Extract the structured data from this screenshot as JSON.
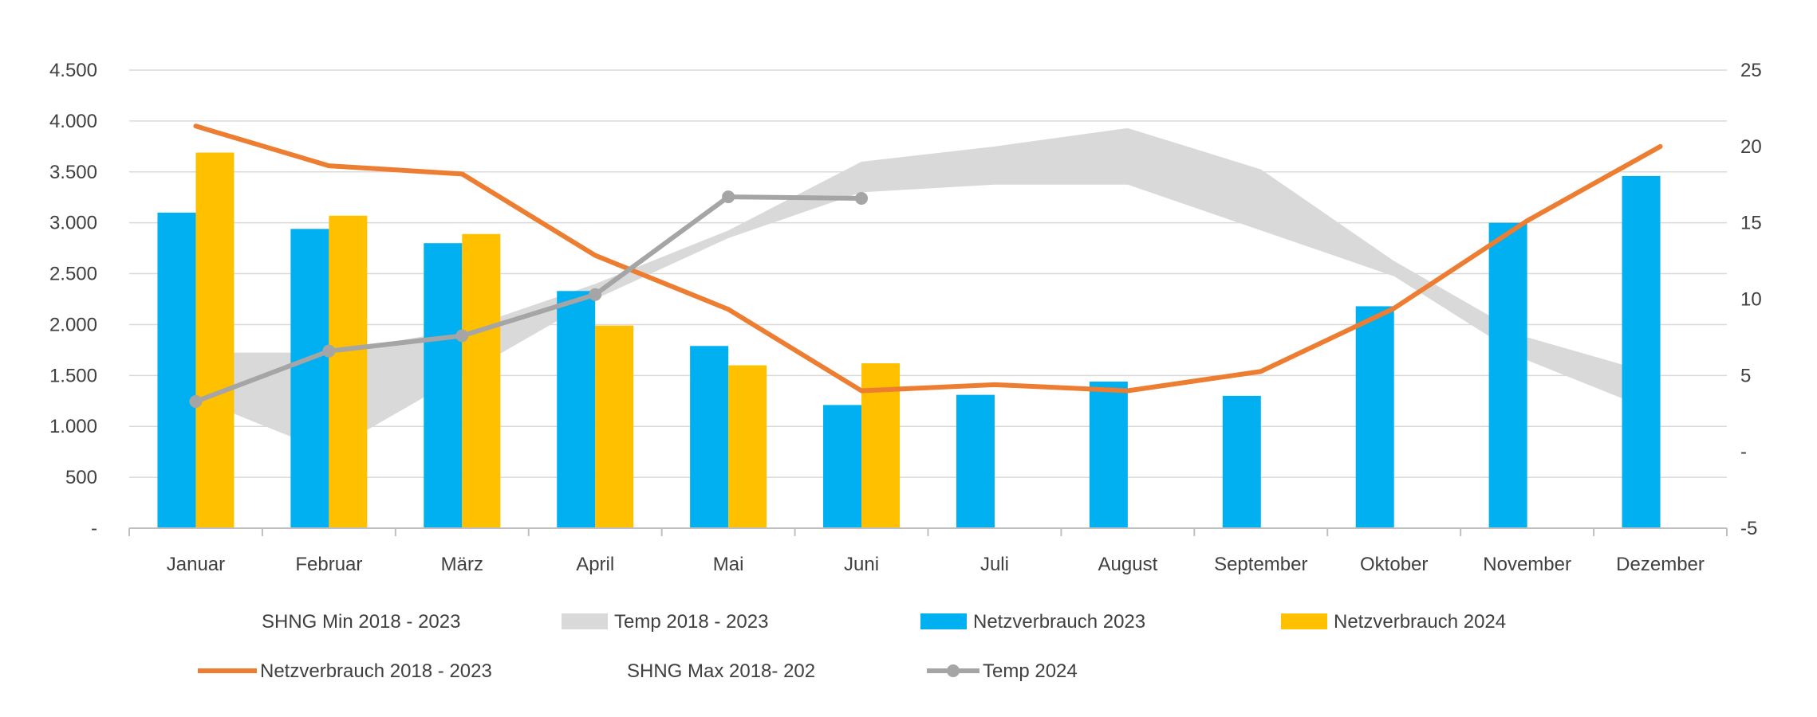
{
  "chart_data": {
    "type": "bar",
    "categories": [
      "Januar",
      "Februar",
      "März",
      "April",
      "Mai",
      "Juni",
      "Juli",
      "August",
      "September",
      "Oktober",
      "November",
      "Dezember"
    ],
    "y_left": {
      "ticks": [
        "-",
        "500",
        "1.000",
        "1.500",
        "2.000",
        "2.500",
        "3.000",
        "3.500",
        "4.000",
        "4.500"
      ],
      "range": [
        0,
        4500
      ]
    },
    "y_right": {
      "ticks": [
        "-5",
        "-",
        "5",
        "10",
        "15",
        "20",
        "25"
      ],
      "range": [
        -5,
        25
      ]
    },
    "grid": true,
    "legend_position": "bottom",
    "series": [
      {
        "name": "SHNG Min 2018 - 2023",
        "kind": "band-lower",
        "axis": "right",
        "values": [
          3.5,
          0,
          5,
          10,
          14,
          17,
          17.5,
          17.5,
          14.5,
          11.5,
          6,
          2.5
        ]
      },
      {
        "name": "SHNG Max 2018- 202",
        "kind": "band-upper",
        "axis": "right",
        "values": [
          6.5,
          6.5,
          8,
          11,
          14.5,
          19,
          20,
          21.2,
          18.5,
          12.5,
          7.5,
          5
        ]
      },
      {
        "name": "Temp 2018 - 2023",
        "kind": "band",
        "axis": "right",
        "color": "#d9d9d9"
      },
      {
        "name": "Netzverbrauch 2023",
        "kind": "bar",
        "axis": "left",
        "color": "#00b0f0",
        "values": [
          3100,
          2940,
          2800,
          2330,
          1790,
          1210,
          1310,
          1440,
          1300,
          2180,
          3000,
          3460
        ]
      },
      {
        "name": "Netzverbrauch 2024",
        "kind": "bar",
        "axis": "left",
        "color": "#ffc000",
        "values": [
          3690,
          3070,
          2890,
          1990,
          1600,
          1620,
          null,
          null,
          null,
          null,
          null,
          null
        ]
      },
      {
        "name": "Netzverbrauch 2018 - 2023",
        "kind": "line",
        "axis": "left",
        "color": "#ed7d31",
        "values": [
          3950,
          3560,
          3480,
          2680,
          2150,
          1350,
          1410,
          1350,
          1540,
          2160,
          3020,
          3750
        ]
      },
      {
        "name": "Temp 2024",
        "kind": "line-marker",
        "axis": "right",
        "color": "#a5a5a5",
        "values": [
          3.3,
          6.6,
          7.6,
          10.3,
          16.7,
          16.6,
          null,
          null,
          null,
          null,
          null,
          null
        ]
      }
    ]
  },
  "legend": {
    "row1": [
      "SHNG Min 2018 - 2023",
      "Temp 2018 - 2023",
      "Netzverbrauch 2023",
      "Netzverbrauch 2024"
    ],
    "row2": [
      "Netzverbrauch 2018 - 2023",
      "SHNG Max 2018- 202",
      "Temp 2024"
    ]
  },
  "colors": {
    "grid": "#d9d9d9",
    "axis": "#bfbfbf",
    "text": "#404040"
  }
}
